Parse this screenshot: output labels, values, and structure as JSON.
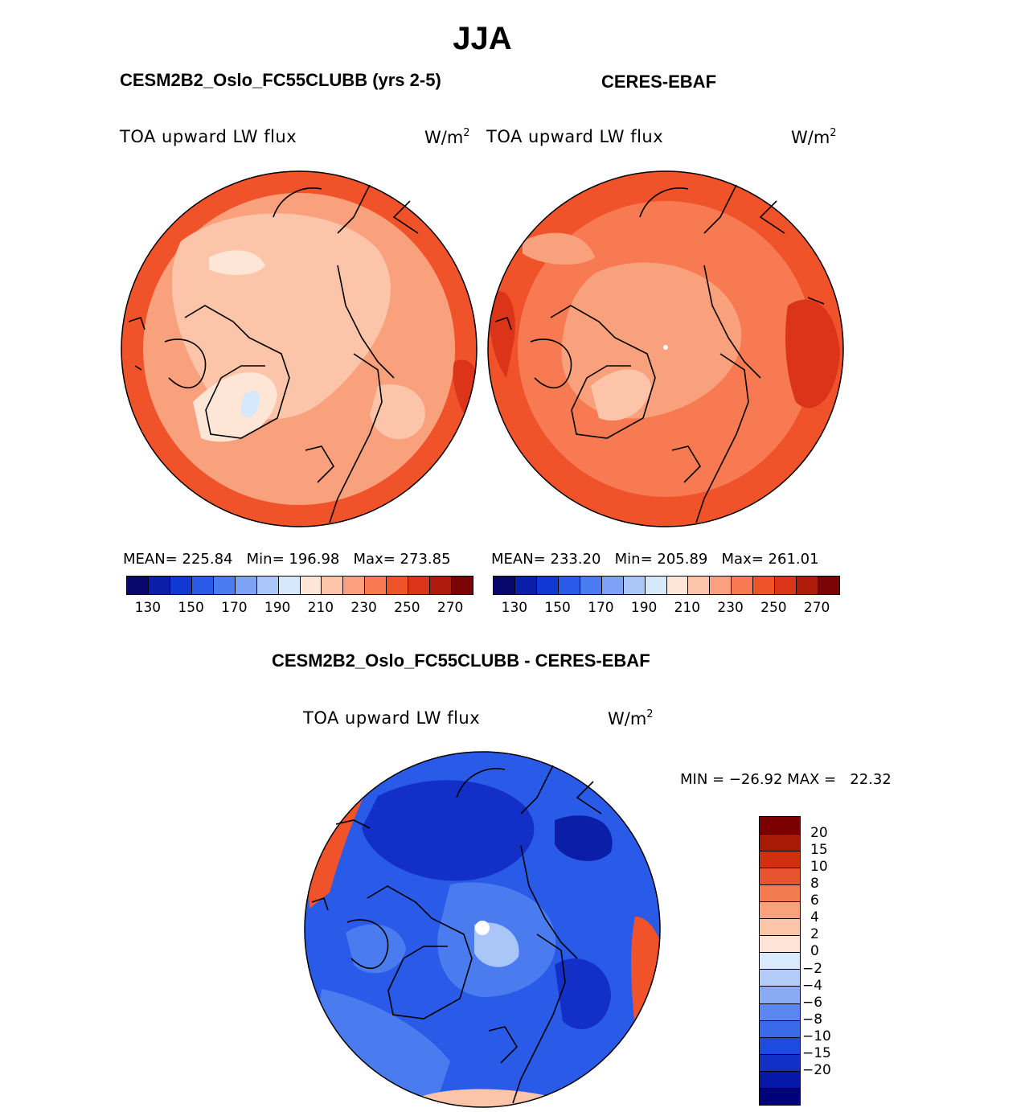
{
  "figure_title": "JJA",
  "panels": [
    {
      "title": "CESM2B2_Oslo_FC55CLUBB (yrs 2-5)",
      "variable": "TOA upward LW flux",
      "unit_base": "W/m",
      "unit_exp": "2",
      "stats": "MEAN= 225.84   Min= 196.98   Max= 273.85"
    },
    {
      "title": "CERES-EBAF",
      "variable": "TOA upward LW flux",
      "unit_base": "W/m",
      "unit_exp": "2",
      "stats": "MEAN= 233.20   Min= 205.89   Max= 261.01"
    },
    {
      "title": "CESM2B2_Oslo_FC55CLUBB - CERES-EBAF",
      "variable": "TOA upward LW flux",
      "unit_base": "W/m",
      "unit_exp": "2",
      "stats": "MIN = −26.92 MAX =   22.32"
    }
  ],
  "abs_colorbar": {
    "colors": [
      "#08076b",
      "#0a1ea8",
      "#1238d4",
      "#2a5ae8",
      "#4a7cf0",
      "#7ea2f5",
      "#aac6f8",
      "#d6e8fc",
      "#fde6d6",
      "#fcc4a8",
      "#fba07e",
      "#f87a52",
      "#f0522a",
      "#dc3418",
      "#b01c0c",
      "#7a0404"
    ],
    "labels": [
      "130",
      "150",
      "170",
      "190",
      "210",
      "230",
      "250",
      "270"
    ]
  },
  "diff_colorbar": {
    "colors": [
      "#00007a",
      "#0718a8",
      "#1230c8",
      "#1f4ae0",
      "#3a6ae8",
      "#5a88f0",
      "#8aaaf4",
      "#b4ccfa",
      "#daeafd",
      "#fde4d6",
      "#fcc4a8",
      "#f9a07c",
      "#f47a50",
      "#e8522e",
      "#d0300e",
      "#a81a06",
      "#7a0000"
    ],
    "labels": [
      "20",
      "15",
      "10",
      "8",
      "6",
      "4",
      "2",
      "0",
      "−2",
      "−4",
      "−6",
      "−8",
      "−10",
      "−15",
      "−20"
    ]
  },
  "map_colors": {
    "model_base": "#f9a07c",
    "obs_base": "#f87a52",
    "diff_base": "#2a5ae8",
    "light_orange": "#fcc4a8",
    "pale": "#fde6d6",
    "light_blue": "#d6e8fc",
    "dark_orange": "#f0522a",
    "red": "#dc3418",
    "mid_blue": "#4a7cf0",
    "dark_blue": "#1230c8",
    "deep_blue": "#0a1ea8",
    "pale_blue": "#aac6f8"
  }
}
